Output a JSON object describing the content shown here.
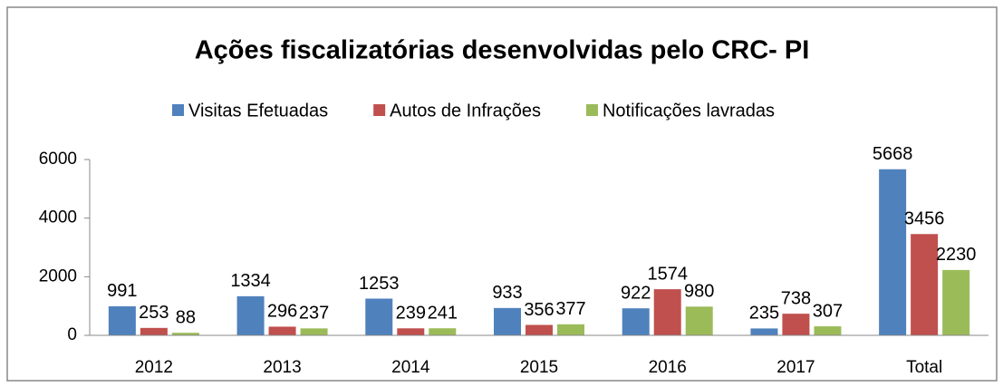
{
  "chart_data": {
    "type": "bar",
    "title": "Ações fiscalizatórias desenvolvidas pelo CRC- PI",
    "categories": [
      "2012",
      "2013",
      "2014",
      "2015",
      "2016",
      "2017",
      "Total"
    ],
    "series": [
      {
        "name": "Visitas Efetuadas",
        "color": "#4f81bd",
        "values": [
          991,
          1334,
          1253,
          933,
          922,
          235,
          5668
        ]
      },
      {
        "name": "Autos de Infrações",
        "color": "#c0504d",
        "values": [
          253,
          296,
          239,
          356,
          1574,
          738,
          3456
        ]
      },
      {
        "name": "Notificações lavradas",
        "color": "#9bbb59",
        "values": [
          88,
          237,
          241,
          377,
          980,
          307,
          2230
        ]
      }
    ],
    "ylim": [
      0,
      6000
    ],
    "yticks": [
      0,
      2000,
      4000,
      6000
    ],
    "legend": "top",
    "grid": false
  }
}
